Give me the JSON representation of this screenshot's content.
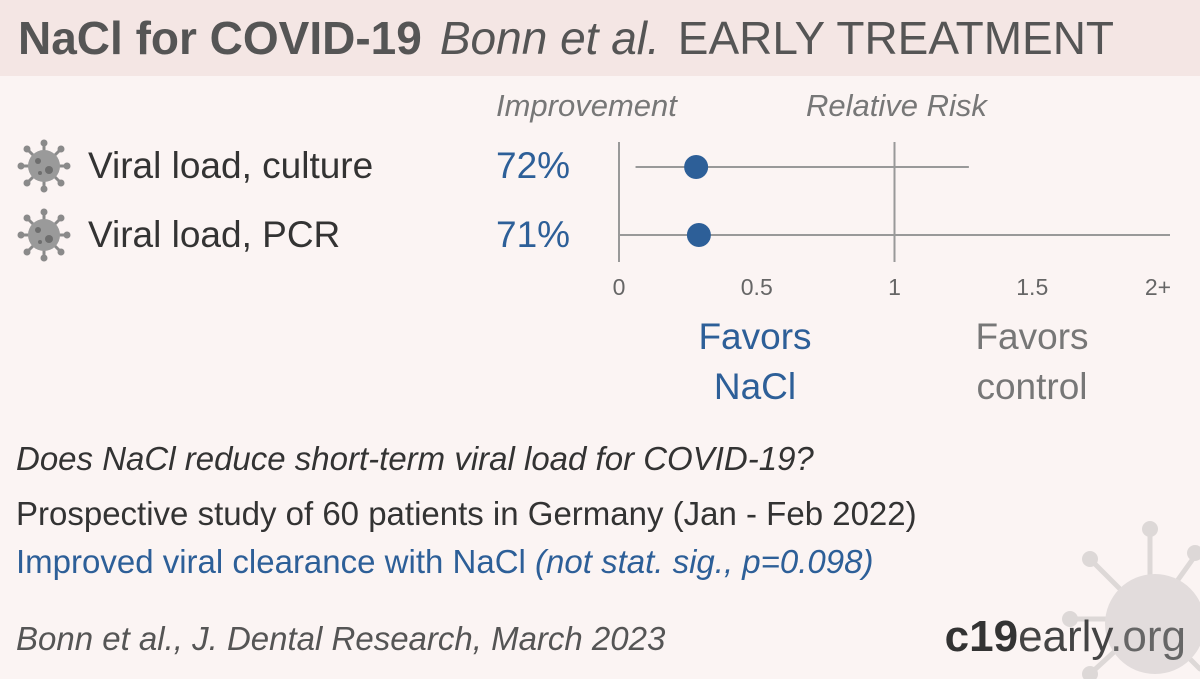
{
  "header": {
    "title": "NaCl for COVID-19",
    "authors": "Bonn et al.",
    "category": "EARLY TREATMENT"
  },
  "columns": {
    "improvement": "Improvement",
    "relative_risk": "Relative Risk"
  },
  "icons": {
    "outcome": "virus-icon",
    "background": "virus-icon"
  },
  "colors": {
    "accent": "#2d5f98",
    "header_bg": "#f4e6e4",
    "page_bg": "#fbf4f3"
  },
  "outcomes": [
    {
      "label": "Viral load, culture",
      "improvement": "72%"
    },
    {
      "label": "Viral load, PCR",
      "improvement": "71%"
    }
  ],
  "chart_data": {
    "type": "scatter",
    "subtype": "forest_plot",
    "categories": [
      "Viral load, culture",
      "Viral load, PCR"
    ],
    "series": [
      {
        "values": [
          0.28,
          0.29
        ],
        "ci_lower": [
          0.06,
          0.0
        ],
        "ci_upper": [
          1.27,
          2.0
        ]
      }
    ],
    "x_ticks": [
      "0",
      "0.5",
      "1",
      "1.5",
      "2+"
    ],
    "x_tick_values": [
      0,
      0.5,
      1,
      1.5,
      2
    ],
    "xlim": [
      0,
      2
    ],
    "reference_line": 1,
    "favors_left": "Favors\nNaCl",
    "favors_right": "Favors\ncontrol",
    "favors_left_line1": "Favors",
    "favors_left_line2": "NaCl",
    "favors_right_line1": "Favors",
    "favors_right_line2": "control"
  },
  "summary": {
    "question": "Does NaCl reduce short-term viral load for COVID-19?",
    "design": "Prospective study of 60 patients in Germany (Jan - Feb 2022)",
    "result_main": "Improved viral clearance with NaCl ",
    "result_detail": "(not stat. sig., p=0.098)"
  },
  "citation": "Bonn et al., J. Dental Research, March 2023",
  "brand": {
    "part1": "c19",
    "part2": "early",
    "part3": ".org"
  }
}
